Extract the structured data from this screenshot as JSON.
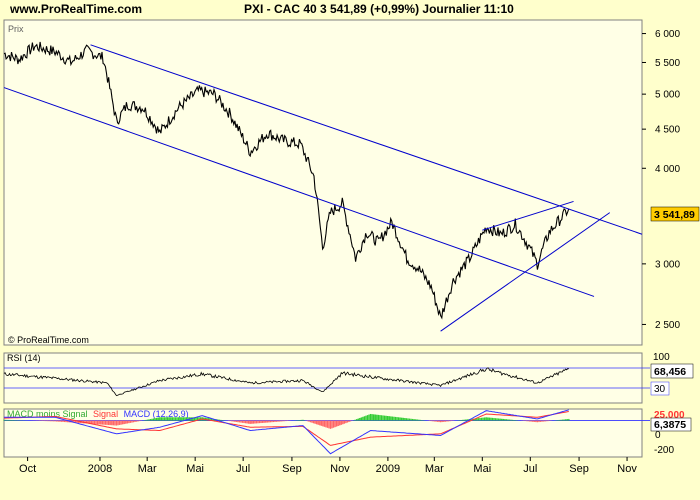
{
  "header": {
    "site": "www.ProRealTime.com",
    "quote": "PXI - CAC 40    3 541,89  (+0,99%)    Journalier   11:10"
  },
  "price_panel": {
    "label": "Prix",
    "watermark": "© ProRealTime.com",
    "last_value_tag": "3 541,89"
  },
  "rsi_panel": {
    "label": "RSI (14)",
    "value_tag": "68,456",
    "ticks": [
      "100",
      "30"
    ]
  },
  "macd_panel": {
    "label_prefix": "MACD moins Signal",
    "label_signal": "Signal",
    "label_macd": "MACD (12,26,9)",
    "value_tag_top": "25,000",
    "value_tag": "6,3875",
    "ticks": [
      "0",
      "-200"
    ]
  },
  "colors": {
    "background": "#FFFFCC",
    "panel": "#FFFFE6",
    "price": "#000000",
    "trendline": "#0000CC",
    "tag": "#FFCC00",
    "macd": "#3333FF",
    "signal": "#FF3333",
    "hist_pos": "#33CC33",
    "hist_neg": "#FF6666"
  },
  "chart_data": [
    {
      "type": "line",
      "title": "PXI - CAC 40",
      "ylabel": "Prix",
      "log_scale": true,
      "ylim": [
        2350,
        6250
      ],
      "yticks": [
        6000,
        5500,
        5000,
        4500,
        4000,
        3000,
        2500
      ],
      "ytick_labels": [
        "6 000",
        "5 500",
        "5 000",
        "4 500",
        "4 000",
        "3 000",
        "2 500"
      ],
      "xlim": [
        "2007-09-01",
        "2009-11-20"
      ],
      "xticks": [
        "2007-10-01",
        "2008-01-01",
        "2008-03-01",
        "2008-05-01",
        "2008-07-01",
        "2008-09-01",
        "2008-11-01",
        "2009-01-01",
        "2009-03-01",
        "2009-05-01",
        "2009-07-01",
        "2009-09-01",
        "2009-11-01"
      ],
      "xtick_labels": [
        "Oct",
        "2008",
        "Mar",
        "Mai",
        "Jul",
        "Sep",
        "Nov",
        "2009",
        "Mar",
        "Mai",
        "Jul",
        "Sep",
        "Nov"
      ],
      "grid": false,
      "series": [
        {
          "x": [
            "2007-09-01",
            "2007-09-20",
            "2007-10-10",
            "2007-11-05",
            "2007-11-25",
            "2007-12-15",
            "2008-01-05",
            "2008-01-22",
            "2008-02-05",
            "2008-02-25",
            "2008-03-17",
            "2008-04-10",
            "2008-05-05",
            "2008-05-25",
            "2008-06-15",
            "2008-07-10",
            "2008-08-01",
            "2008-08-20",
            "2008-09-12",
            "2008-09-29",
            "2008-10-10",
            "2008-10-20",
            "2008-11-04",
            "2008-11-21",
            "2008-12-05",
            "2008-12-20",
            "2009-01-06",
            "2009-01-25",
            "2009-02-10",
            "2009-02-25",
            "2009-03-09",
            "2009-03-25",
            "2009-04-15",
            "2009-05-06",
            "2009-05-25",
            "2009-06-12",
            "2009-06-30",
            "2009-07-10",
            "2009-07-25",
            "2009-08-10",
            "2009-08-19"
          ],
          "values": [
            5650,
            5550,
            5780,
            5680,
            5500,
            5700,
            5580,
            4600,
            4850,
            4800,
            4450,
            4800,
            5050,
            5000,
            4700,
            4200,
            4450,
            4350,
            4300,
            3900,
            3150,
            3500,
            3600,
            3050,
            3300,
            3200,
            3400,
            3050,
            2950,
            2800,
            2550,
            2850,
            3050,
            3350,
            3280,
            3380,
            3150,
            3000,
            3300,
            3450,
            3541.89
          ]
        }
      ],
      "trendlines": [
        {
          "x": [
            "2007-12-20",
            "2009-11-20"
          ],
          "y": [
            5800,
            3280
          ]
        },
        {
          "x": [
            "2007-09-01",
            "2009-09-20"
          ],
          "y": [
            5100,
            2720
          ]
        },
        {
          "x": [
            "2009-03-09",
            "2009-10-10"
          ],
          "y": [
            2450,
            3500
          ]
        },
        {
          "x": [
            "2009-05-01",
            "2009-08-25"
          ],
          "y": [
            3320,
            3620
          ]
        }
      ]
    },
    {
      "type": "line",
      "title": "RSI (14)",
      "ylim": [
        0,
        100
      ],
      "levels": [
        70,
        30
      ],
      "series": [
        {
          "x": [
            "2007-09-01",
            "2007-11-01",
            "2008-01-10",
            "2008-01-22",
            "2008-03-17",
            "2008-05-10",
            "2008-07-10",
            "2008-09-15",
            "2008-10-10",
            "2008-11-04",
            "2008-12-20",
            "2009-03-09",
            "2009-05-06",
            "2009-07-10",
            "2009-08-19"
          ],
          "values": [
            58,
            50,
            40,
            15,
            45,
            58,
            40,
            45,
            22,
            60,
            50,
            35,
            68,
            40,
            68.456
          ]
        }
      ]
    },
    {
      "type": "line",
      "title": "MACD (12,26,9)",
      "ylim": [
        -220,
        70
      ],
      "series": [
        {
          "name": "MACD (12,26,9)",
          "x": [
            "2007-09-01",
            "2007-11-05",
            "2008-01-22",
            "2008-03-17",
            "2008-05-10",
            "2008-07-10",
            "2008-09-15",
            "2008-10-20",
            "2008-12-10",
            "2009-03-09",
            "2009-05-06",
            "2009-07-10",
            "2009-08-19"
          ],
          "values": [
            20,
            20,
            -80,
            -40,
            30,
            -60,
            -30,
            -200,
            -60,
            -90,
            60,
            10,
            65
          ]
        },
        {
          "name": "Signal",
          "x": [
            "2007-09-01",
            "2007-11-05",
            "2008-01-22",
            "2008-03-17",
            "2008-05-10",
            "2008-07-10",
            "2008-09-15",
            "2008-10-20",
            "2008-12-10",
            "2009-03-09",
            "2009-05-06",
            "2009-07-10",
            "2009-08-19"
          ],
          "values": [
            15,
            25,
            -50,
            -60,
            10,
            -40,
            -35,
            -150,
            -100,
            -80,
            40,
            20,
            55
          ]
        },
        {
          "name": "MACD moins Signal",
          "x": [
            "2007-09-01",
            "2007-11-05",
            "2008-01-22",
            "2008-03-17",
            "2008-05-10",
            "2008-07-10",
            "2008-09-15",
            "2008-10-20",
            "2008-12-10",
            "2009-03-09",
            "2009-05-06",
            "2009-07-10",
            "2009-08-19"
          ],
          "values": [
            5,
            -5,
            -30,
            20,
            20,
            -20,
            5,
            -50,
            40,
            -10,
            20,
            -10,
            10
          ]
        }
      ]
    }
  ]
}
